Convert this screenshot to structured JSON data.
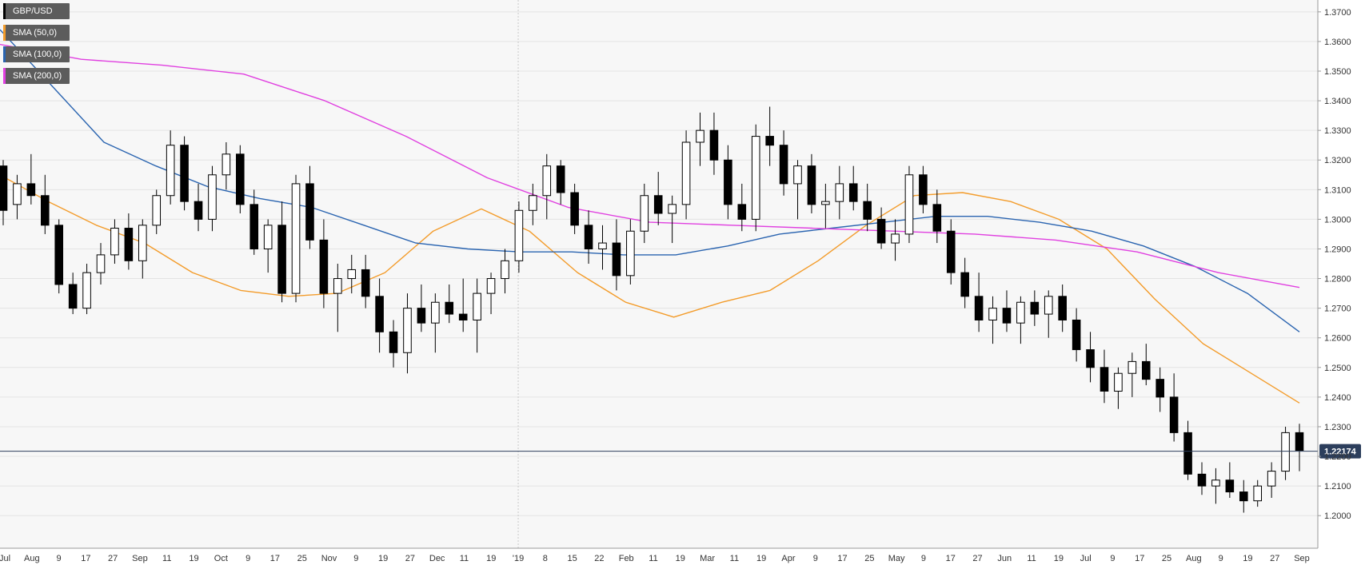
{
  "chart_data": {
    "type": "candlestick",
    "symbol": "GBP/USD",
    "timeframe": "daily",
    "legend": [
      {
        "label": "GBP/USD",
        "color": "#000000"
      },
      {
        "label": "SMA (50,0)",
        "color": "#f39c2b"
      },
      {
        "label": "SMA (100,0)",
        "color": "#2a64b0"
      },
      {
        "label": "SMA (200,0)",
        "color": "#e040e0"
      }
    ],
    "y_axis": {
      "position": "right",
      "ylim": [
        1.189,
        1.374
      ],
      "ticks": [
        "1.3700",
        "1.3600",
        "1.3500",
        "1.3400",
        "1.3300",
        "1.3200",
        "1.3100",
        "1.3000",
        "1.2900",
        "1.2800",
        "1.2700",
        "1.2600",
        "1.2500",
        "1.2400",
        "1.2300",
        "1.2200",
        "1.2100",
        "1.2000"
      ]
    },
    "x_axis": {
      "tick_labels": [
        "Jul",
        "Aug",
        "9",
        "17",
        "27",
        "Sep",
        "11",
        "19",
        "Oct",
        "9",
        "17",
        "25",
        "Nov",
        "9",
        "19",
        "27",
        "Dec",
        "11",
        "19",
        "'19",
        "8",
        "15",
        "22",
        "Feb",
        "11",
        "19",
        "Mar",
        "11",
        "19",
        "Apr",
        "9",
        "17",
        "25",
        "May",
        "9",
        "17",
        "27",
        "Jun",
        "11",
        "19",
        "Jul",
        "9",
        "17",
        "25",
        "Aug",
        "9",
        "19",
        "27",
        "Sep"
      ],
      "separator_at": "'19"
    },
    "current_price": {
      "label": "1.22174",
      "value": 1.22174
    },
    "series": [
      {
        "name": "SMA (50,0)",
        "color": "#f39c2b",
        "values": [
          1.315,
          1.306,
          1.298,
          1.292,
          1.282,
          1.276,
          1.274,
          1.275,
          1.282,
          1.296,
          1.3035,
          1.296,
          1.282,
          1.272,
          1.267,
          1.272,
          1.276,
          1.286,
          1.298,
          1.308,
          1.309,
          1.306,
          1.3,
          1.29,
          1.273,
          1.258,
          1.248,
          1.238
        ]
      },
      {
        "name": "SMA (100,0)",
        "color": "#2a64b0",
        "values": [
          1.364,
          1.345,
          1.326,
          1.318,
          1.311,
          1.307,
          1.304,
          1.298,
          1.292,
          1.29,
          1.289,
          1.289,
          1.288,
          1.288,
          1.291,
          1.295,
          1.297,
          1.299,
          1.301,
          1.301,
          1.299,
          1.296,
          1.291,
          1.284,
          1.275,
          1.262
        ]
      },
      {
        "name": "SMA (200,0)",
        "color": "#e040e0",
        "values": [
          1.359,
          1.354,
          1.352,
          1.349,
          1.34,
          1.328,
          1.314,
          1.304,
          1.299,
          1.298,
          1.297,
          1.296,
          1.295,
          1.293,
          1.289,
          1.282,
          1.277
        ]
      }
    ],
    "candles_ohlc": [
      [
        1.318,
        1.32,
        1.298,
        1.303
      ],
      [
        1.305,
        1.315,
        1.3,
        1.312
      ],
      [
        1.312,
        1.322,
        1.305,
        1.308
      ],
      [
        1.308,
        1.315,
        1.295,
        1.298
      ],
      [
        1.298,
        1.3,
        1.275,
        1.278
      ],
      [
        1.278,
        1.282,
        1.268,
        1.27
      ],
      [
        1.27,
        1.285,
        1.268,
        1.282
      ],
      [
        1.282,
        1.292,
        1.278,
        1.288
      ],
      [
        1.288,
        1.3,
        1.285,
        1.297
      ],
      [
        1.297,
        1.302,
        1.283,
        1.286
      ],
      [
        1.286,
        1.3,
        1.28,
        1.298
      ],
      [
        1.298,
        1.31,
        1.295,
        1.308
      ],
      [
        1.308,
        1.33,
        1.305,
        1.325
      ],
      [
        1.325,
        1.328,
        1.303,
        1.306
      ],
      [
        1.306,
        1.312,
        1.296,
        1.3
      ],
      [
        1.3,
        1.318,
        1.296,
        1.315
      ],
      [
        1.315,
        1.326,
        1.31,
        1.322
      ],
      [
        1.322,
        1.325,
        1.302,
        1.305
      ],
      [
        1.305,
        1.31,
        1.288,
        1.29
      ],
      [
        1.29,
        1.3,
        1.282,
        1.298
      ],
      [
        1.298,
        1.306,
        1.272,
        1.275
      ],
      [
        1.275,
        1.315,
        1.272,
        1.312
      ],
      [
        1.312,
        1.318,
        1.29,
        1.293
      ],
      [
        1.293,
        1.3,
        1.27,
        1.275
      ],
      [
        1.275,
        1.285,
        1.262,
        1.28
      ],
      [
        1.28,
        1.288,
        1.275,
        1.283
      ],
      [
        1.283,
        1.288,
        1.27,
        1.274
      ],
      [
        1.274,
        1.28,
        1.255,
        1.262
      ],
      [
        1.262,
        1.266,
        1.25,
        1.255
      ],
      [
        1.255,
        1.275,
        1.248,
        1.27
      ],
      [
        1.27,
        1.278,
        1.262,
        1.265
      ],
      [
        1.265,
        1.275,
        1.255,
        1.272
      ],
      [
        1.272,
        1.278,
        1.265,
        1.268
      ],
      [
        1.268,
        1.28,
        1.262,
        1.266
      ],
      [
        1.266,
        1.28,
        1.255,
        1.275
      ],
      [
        1.275,
        1.282,
        1.268,
        1.28
      ],
      [
        1.28,
        1.29,
        1.275,
        1.286
      ],
      [
        1.286,
        1.306,
        1.282,
        1.303
      ],
      [
        1.303,
        1.312,
        1.298,
        1.308
      ],
      [
        1.308,
        1.322,
        1.3,
        1.318
      ],
      [
        1.318,
        1.32,
        1.305,
        1.309
      ],
      [
        1.309,
        1.312,
        1.295,
        1.298
      ],
      [
        1.298,
        1.303,
        1.285,
        1.29
      ],
      [
        1.29,
        1.298,
        1.283,
        1.292
      ],
      [
        1.292,
        1.3,
        1.276,
        1.281
      ],
      [
        1.281,
        1.3,
        1.278,
        1.296
      ],
      [
        1.296,
        1.312,
        1.292,
        1.308
      ],
      [
        1.308,
        1.316,
        1.298,
        1.302
      ],
      [
        1.302,
        1.308,
        1.292,
        1.305
      ],
      [
        1.305,
        1.33,
        1.3,
        1.326
      ],
      [
        1.326,
        1.336,
        1.318,
        1.33
      ],
      [
        1.33,
        1.336,
        1.315,
        1.32
      ],
      [
        1.32,
        1.325,
        1.3,
        1.305
      ],
      [
        1.305,
        1.312,
        1.296,
        1.3
      ],
      [
        1.3,
        1.332,
        1.296,
        1.328
      ],
      [
        1.328,
        1.338,
        1.318,
        1.325
      ],
      [
        1.325,
        1.33,
        1.308,
        1.312
      ],
      [
        1.312,
        1.32,
        1.3,
        1.318
      ],
      [
        1.318,
        1.322,
        1.302,
        1.305
      ],
      [
        1.305,
        1.312,
        1.297,
        1.306
      ],
      [
        1.306,
        1.318,
        1.3,
        1.312
      ],
      [
        1.312,
        1.318,
        1.303,
        1.306
      ],
      [
        1.306,
        1.312,
        1.296,
        1.3
      ],
      [
        1.3,
        1.304,
        1.29,
        1.292
      ],
      [
        1.292,
        1.3,
        1.286,
        1.295
      ],
      [
        1.295,
        1.318,
        1.292,
        1.315
      ],
      [
        1.315,
        1.318,
        1.302,
        1.305
      ],
      [
        1.305,
        1.31,
        1.292,
        1.296
      ],
      [
        1.296,
        1.3,
        1.278,
        1.282
      ],
      [
        1.282,
        1.287,
        1.27,
        1.274
      ],
      [
        1.274,
        1.282,
        1.262,
        1.266
      ],
      [
        1.266,
        1.274,
        1.258,
        1.27
      ],
      [
        1.27,
        1.276,
        1.262,
        1.265
      ],
      [
        1.265,
        1.274,
        1.258,
        1.272
      ],
      [
        1.272,
        1.276,
        1.264,
        1.268
      ],
      [
        1.268,
        1.276,
        1.26,
        1.274
      ],
      [
        1.274,
        1.278,
        1.262,
        1.266
      ],
      [
        1.266,
        1.27,
        1.252,
        1.256
      ],
      [
        1.256,
        1.262,
        1.245,
        1.25
      ],
      [
        1.25,
        1.256,
        1.238,
        1.242
      ],
      [
        1.242,
        1.25,
        1.236,
        1.248
      ],
      [
        1.248,
        1.255,
        1.24,
        1.252
      ],
      [
        1.252,
        1.258,
        1.244,
        1.246
      ],
      [
        1.246,
        1.25,
        1.235,
        1.24
      ],
      [
        1.24,
        1.248,
        1.225,
        1.228
      ],
      [
        1.228,
        1.232,
        1.212,
        1.214
      ],
      [
        1.214,
        1.218,
        1.207,
        1.21
      ],
      [
        1.21,
        1.216,
        1.204,
        1.212
      ],
      [
        1.212,
        1.218,
        1.206,
        1.208
      ],
      [
        1.208,
        1.212,
        1.201,
        1.205
      ],
      [
        1.205,
        1.212,
        1.203,
        1.21
      ],
      [
        1.21,
        1.218,
        1.206,
        1.215
      ],
      [
        1.215,
        1.23,
        1.212,
        1.228
      ],
      [
        1.228,
        1.231,
        1.215,
        1.222
      ]
    ]
  }
}
